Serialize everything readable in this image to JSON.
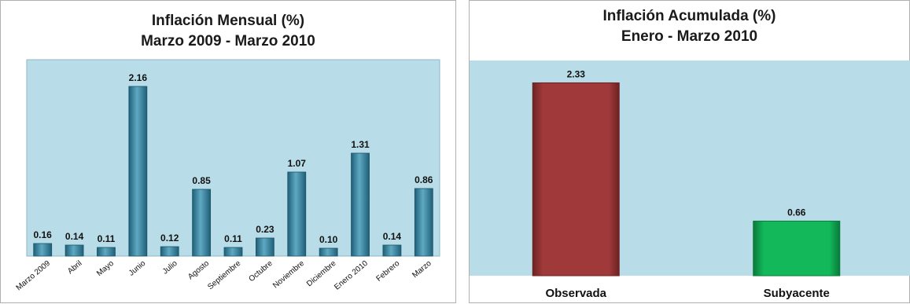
{
  "chart_data": [
    {
      "type": "bar",
      "title": "Inflación Mensual (%)",
      "subtitle": "Marzo 2009 -  Marzo 2010",
      "categories": [
        "Marzo 2009",
        "Abril",
        "Mayo",
        "Junio",
        "Julio",
        "Agosto",
        "Septiembre",
        "Octubre",
        "Noviembre",
        "Diciembre",
        "Enero 2010",
        "Febrero",
        "Marzo"
      ],
      "values": [
        0.16,
        0.14,
        0.11,
        2.16,
        0.12,
        0.85,
        0.11,
        0.23,
        1.07,
        0.1,
        1.31,
        0.14,
        0.86
      ],
      "value_labels": [
        "0.16",
        "0.14",
        "0.11",
        "2.16",
        "0.12",
        "0.85",
        "0.11",
        "0.23",
        "1.07",
        "0.10",
        "1.31",
        "0.14",
        "0.86"
      ],
      "ylim": [
        0,
        2.5
      ],
      "grid": false,
      "colors": {
        "bar": "#3a8ba6",
        "bar_dark": "#1f5f78",
        "bar_light": "#5fa9c2",
        "plot_bg": "#b8dde8"
      }
    },
    {
      "type": "bar",
      "title": "Inflación  Acumulada (%)",
      "subtitle": "Enero - Marzo 2010",
      "categories": [
        "Observada",
        "Subyacente"
      ],
      "values": [
        2.33,
        0.66
      ],
      "value_labels": [
        "2.33",
        "0.66"
      ],
      "ylim": [
        0,
        2.6
      ],
      "grid": false,
      "colors": {
        "bars": [
          "#a03a3a",
          "#12b85a"
        ],
        "bars_dark": [
          "#6e2222",
          "#0a7a3a"
        ],
        "plot_bg": "#b8dde8"
      }
    }
  ]
}
